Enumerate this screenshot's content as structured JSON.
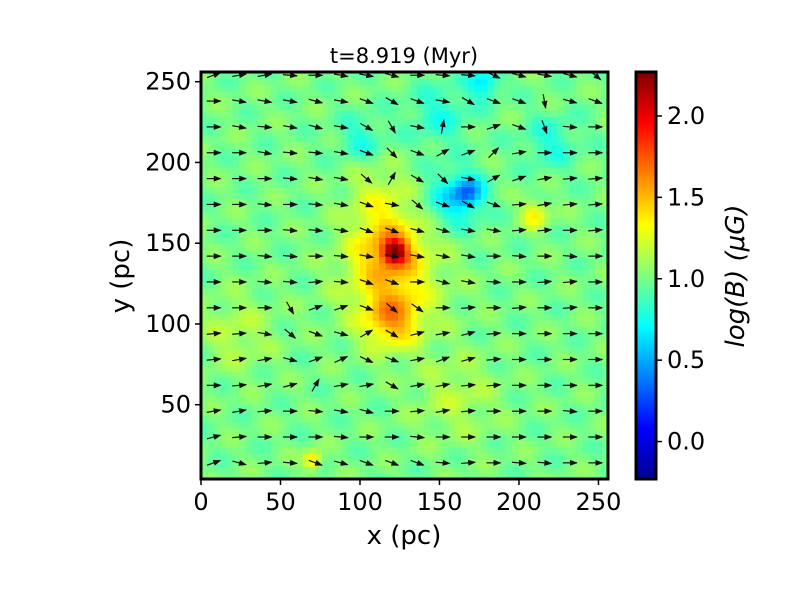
{
  "chart_data": {
    "type": "heatmap",
    "title": "t=8.919 (Myr)",
    "xlabel": "x (pc)",
    "ylabel": "y (pc)",
    "xlim": [
      0,
      256
    ],
    "ylim": [
      4,
      256
    ],
    "xticks": [
      0,
      50,
      100,
      150,
      200,
      250
    ],
    "yticks": [
      50,
      100,
      150,
      200,
      250
    ],
    "colormap": "jet",
    "colorbar": {
      "label": "log(B) (μG)",
      "range": [
        -0.23,
        2.27
      ],
      "ticks": [
        0.0,
        0.5,
        1.0,
        1.5,
        2.0
      ],
      "tick_labels": [
        "0.0",
        "0.5",
        "1.0",
        "1.5",
        "2.0"
      ]
    },
    "field_features": [
      {
        "x": 122,
        "y": 145,
        "value": 1.85,
        "spread": 5
      },
      {
        "x": 120,
        "y": 103,
        "value": 1.45,
        "spread": 12
      },
      {
        "x": 118,
        "y": 148,
        "value": 1.42,
        "spread": 15
      },
      {
        "x": 120,
        "y": 125,
        "value": 1.3,
        "spread": 22
      },
      {
        "x": 112,
        "y": 180,
        "value": 1.2,
        "spread": 14
      },
      {
        "x": 210,
        "y": 168,
        "value": 1.35,
        "spread": 6
      },
      {
        "x": 70,
        "y": 16,
        "value": 1.45,
        "spread": 4
      },
      {
        "x": 22,
        "y": 95,
        "value": 1.15,
        "spread": 16
      },
      {
        "x": 160,
        "y": 55,
        "value": 1.15,
        "spread": 18
      },
      {
        "x": 168,
        "y": 182,
        "value": 0.55,
        "spread": 6
      },
      {
        "x": 160,
        "y": 178,
        "value": 0.65,
        "spread": 12
      },
      {
        "x": 178,
        "y": 250,
        "value": 0.65,
        "spread": 7
      },
      {
        "x": 220,
        "y": 213,
        "value": 0.8,
        "spread": 12
      },
      {
        "x": 100,
        "y": 215,
        "value": 0.8,
        "spread": 10
      },
      {
        "x": 150,
        "y": 230,
        "value": 0.8,
        "spread": 14
      }
    ],
    "background_value": 1.0,
    "vector_field": {
      "x": [
        8,
        24,
        40,
        56,
        72,
        88,
        104,
        120,
        136,
        152,
        168,
        184,
        200,
        216,
        232,
        248
      ],
      "y": [
        14,
        30,
        46,
        62,
        78,
        94,
        110,
        126,
        142,
        158,
        174,
        190,
        206,
        222,
        238,
        254
      ],
      "angle_deg": [
        [
          20,
          -15,
          5,
          -5,
          -20,
          -15,
          -20,
          -20,
          -20,
          -5,
          5,
          0,
          -5,
          -5,
          0,
          0
        ],
        [
          15,
          5,
          0,
          0,
          0,
          -5,
          0,
          0,
          -5,
          0,
          0,
          0,
          0,
          0,
          0,
          0
        ],
        [
          10,
          10,
          5,
          0,
          -5,
          -10,
          -15,
          0,
          5,
          10,
          5,
          0,
          0,
          0,
          -5,
          0
        ],
        [
          0,
          5,
          10,
          15,
          60,
          10,
          10,
          -30,
          10,
          10,
          5,
          5,
          0,
          0,
          0,
          0
        ],
        [
          5,
          10,
          10,
          -15,
          20,
          25,
          -25,
          -20,
          10,
          20,
          15,
          5,
          0,
          0,
          0,
          0
        ],
        [
          5,
          5,
          -10,
          -40,
          -20,
          -15,
          30,
          -30,
          15,
          10,
          15,
          5,
          0,
          0,
          0,
          0
        ],
        [
          0,
          0,
          0,
          -60,
          20,
          20,
          -20,
          -40,
          -35,
          0,
          5,
          0,
          5,
          0,
          5,
          0
        ],
        [
          0,
          0,
          -5,
          -5,
          5,
          -5,
          -20,
          -20,
          0,
          -15,
          -10,
          -5,
          0,
          5,
          5,
          0
        ],
        [
          0,
          0,
          -5,
          -5,
          0,
          -5,
          -10,
          -10,
          -10,
          -10,
          -10,
          0,
          -5,
          0,
          -5,
          0
        ],
        [
          0,
          0,
          0,
          -5,
          -5,
          -10,
          -20,
          -20,
          -15,
          -15,
          -10,
          -10,
          5,
          5,
          0,
          5
        ],
        [
          0,
          0,
          -5,
          0,
          -5,
          -10,
          -20,
          -10,
          -40,
          -20,
          -30,
          -20,
          5,
          10,
          5,
          5
        ],
        [
          0,
          0,
          0,
          -5,
          -10,
          -10,
          -40,
          60,
          -30,
          -45,
          -10,
          30,
          20,
          10,
          5,
          5
        ],
        [
          0,
          0,
          -10,
          -5,
          -5,
          -10,
          -20,
          -45,
          -20,
          30,
          20,
          45,
          10,
          0,
          0,
          0
        ],
        [
          0,
          -10,
          -5,
          -10,
          -15,
          -10,
          -30,
          -60,
          -10,
          80,
          0,
          20,
          -20,
          -70,
          -5,
          0
        ],
        [
          0,
          -10,
          -10,
          -10,
          -15,
          -10,
          -20,
          -30,
          -20,
          -10,
          -30,
          -20,
          -20,
          -80,
          -15,
          -20
        ],
        [
          20,
          10,
          10,
          -5,
          0,
          -10,
          -10,
          -15,
          0,
          -5,
          -5,
          -25,
          -15,
          -10,
          -15,
          -40
        ]
      ]
    }
  }
}
